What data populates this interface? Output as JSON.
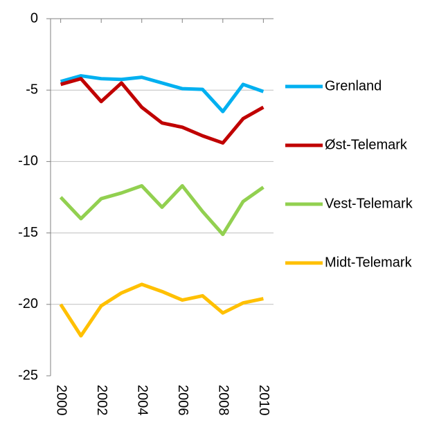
{
  "chart_data": {
    "type": "line",
    "x": [
      2000,
      2001,
      2002,
      2003,
      2004,
      2005,
      2006,
      2007,
      2008,
      2009,
      2010
    ],
    "xlim": [
      1999.5,
      2010.5
    ],
    "xticks": [
      2000,
      2002,
      2004,
      2006,
      2008,
      2010
    ],
    "ylim": [
      -25,
      0
    ],
    "yticks": [
      0,
      -5,
      -10,
      -15,
      -20,
      -25
    ],
    "grid": true,
    "legend": "right",
    "series": [
      {
        "name": "Grenland",
        "color": "#00b0f0",
        "values": [
          -4.4,
          -4.0,
          -4.2,
          -4.25,
          -4.1,
          -4.5,
          -4.9,
          -4.95,
          -6.5,
          -4.6,
          -5.1
        ]
      },
      {
        "name": "Øst-Telemark",
        "color": "#c00000",
        "values": [
          -4.6,
          -4.2,
          -5.8,
          -4.5,
          -6.2,
          -7.3,
          -7.6,
          -8.2,
          -8.7,
          -7.0,
          -6.2
        ]
      },
      {
        "name": "Vest-Telemark",
        "color": "#92d050",
        "values": [
          -12.5,
          -14.0,
          -12.6,
          -12.2,
          -11.7,
          -13.2,
          -11.7,
          -13.5,
          -15.1,
          -12.8,
          -11.8
        ]
      },
      {
        "name": "Midt-Telemark",
        "color": "#ffc000",
        "values": [
          -20.0,
          -22.2,
          -20.1,
          -19.2,
          -18.6,
          -19.1,
          -19.7,
          -19.4,
          -20.6,
          -19.9,
          -19.6
        ]
      }
    ]
  }
}
